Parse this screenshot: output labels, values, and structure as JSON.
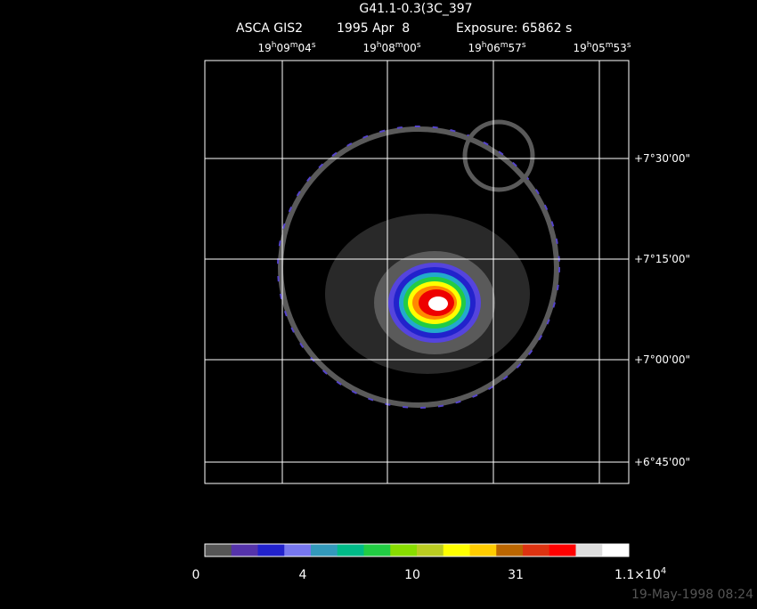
{
  "header": {
    "title": "G41.1-0.3(3C_397",
    "instrument": "ASCA GIS2",
    "date": "1995 Apr  8",
    "exposure": "Exposure: 65862 s"
  },
  "ra_labels": [
    [
      "19",
      "h",
      "09",
      "m",
      "04",
      "s"
    ],
    [
      "19",
      "h",
      "08",
      "m",
      "00",
      "s"
    ],
    [
      "19",
      "h",
      "06",
      "m",
      "57",
      "s"
    ],
    [
      "19",
      "h",
      "05",
      "m",
      "53",
      "s"
    ]
  ],
  "dec_labels": [
    "+7°30'00\"",
    "+7°15'00\"",
    "+7°00'00\"",
    "+6°45'00\""
  ],
  "colorbar": {
    "labels": [
      "0",
      "4",
      "10",
      "31"
    ],
    "max_label": {
      "mantissa": "1.1×10",
      "exponent": "4"
    }
  },
  "timestamp": "19-May-1998 08:24"
}
